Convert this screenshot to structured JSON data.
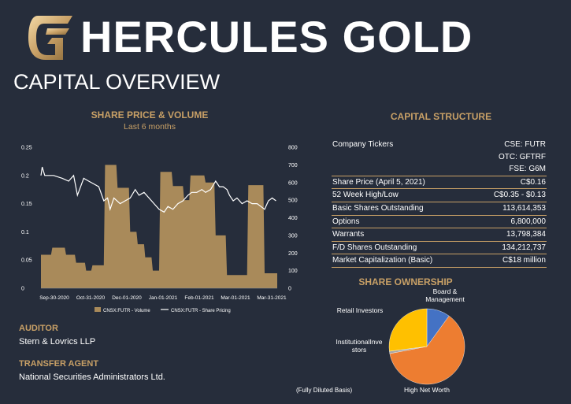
{
  "header": {
    "brand": "HERCULES GOLD",
    "subtitle": "CAPITAL OVERVIEW"
  },
  "share_chart": {
    "title": "SHARE PRICE & VOLUME",
    "subtitle": "Last 6 months"
  },
  "capital_structure": {
    "title": "CAPITAL STRUCTURE",
    "rows": [
      {
        "label": "Company Tickers",
        "value": "CSE: FUTR",
        "rule": false
      },
      {
        "label": "",
        "value": "OTC: GFTRF",
        "rule": false
      },
      {
        "label": "",
        "value": "FSE: G6M",
        "rule": true
      },
      {
        "label": "Share Price (April 5, 2021)",
        "value": "C$0.16",
        "rule": true
      },
      {
        "label": "52 Week High/Low",
        "value": "C$0.35 - $0.13",
        "rule": true
      },
      {
        "label": "Basic Shares Outstanding",
        "value": "113,614,353",
        "rule": true
      },
      {
        "label": "Options",
        "value": "6,800,000",
        "rule": true
      },
      {
        "label": "Warrants",
        "value": "13,798,384",
        "rule": true
      },
      {
        "label": "F/D Shares Outstanding",
        "value": "134,212,737",
        "rule": true
      },
      {
        "label": "Market Capitalization (Basic)",
        "value": "C$18 million",
        "rule": true
      }
    ]
  },
  "ownership": {
    "title": "SHARE OWNERSHIP",
    "basis_note": "(Fully Diluted Basis)"
  },
  "auditor": {
    "heading": "AUDITOR",
    "value": "Stern & Lovrics LLP"
  },
  "transfer_agent": {
    "heading": "TRANSFER AGENT",
    "value": "National Securities Administrators Ltd."
  },
  "colors": {
    "background": "#262d3b",
    "gold": "#c8a066",
    "volume": "#a98a5a",
    "price": "#ffffff"
  },
  "chart_data": [
    {
      "type": "bar+line",
      "title": "SHARE PRICE & VOLUME",
      "subtitle": "Last 6 months",
      "x_ticks": [
        "Sep-30-2020",
        "Oct-31-2020",
        "Dec-01-2020",
        "Jan-01-2021",
        "Feb-01-2021",
        "Mar-01-2021",
        "Mar-31-2021"
      ],
      "x_range": [
        "2020-09-30",
        "2021-04-06"
      ],
      "y_left": {
        "ticks": [
          0,
          0.05,
          0.1,
          0.15,
          0.2,
          0.25
        ],
        "lim": [
          0,
          0.25
        ],
        "series": "CNSX:FUTR - Share Pricing"
      },
      "y_right": {
        "ticks": [
          0,
          100,
          200,
          300,
          400,
          500,
          600,
          700,
          800
        ],
        "lim": [
          0,
          800
        ],
        "series": "CNSX:FUTR - Volume"
      },
      "legend": [
        "CNSX:FUTR - Volume",
        "CNSX:FUTR - Share Pricing"
      ],
      "legend_position": "bottom",
      "series": [
        {
          "name": "CNSX:FUTR - Volume",
          "type": "area-step",
          "points": [
            [
              "2020-09-30",
              190
            ],
            [
              "2020-10-08",
              190
            ],
            [
              "2020-10-09",
              230
            ],
            [
              "2020-10-19",
              230
            ],
            [
              "2020-10-20",
              190
            ],
            [
              "2020-10-27",
              190
            ],
            [
              "2020-10-28",
              145
            ],
            [
              "2020-11-04",
              145
            ],
            [
              "2020-11-05",
              100
            ],
            [
              "2020-11-09",
              100
            ],
            [
              "2020-11-10",
              130
            ],
            [
              "2020-11-19",
              130
            ],
            [
              "2020-11-20",
              700
            ],
            [
              "2020-11-29",
              700
            ],
            [
              "2020-11-30",
              570
            ],
            [
              "2020-12-09",
              570
            ],
            [
              "2020-12-10",
              320
            ],
            [
              "2020-12-15",
              320
            ],
            [
              "2020-12-16",
              250
            ],
            [
              "2020-12-21",
              250
            ],
            [
              "2020-12-22",
              175
            ],
            [
              "2020-12-27",
              175
            ],
            [
              "2020-12-28",
              100
            ],
            [
              "2021-01-02",
              100
            ],
            [
              "2021-01-03",
              660
            ],
            [
              "2021-01-12",
              660
            ],
            [
              "2021-01-13",
              580
            ],
            [
              "2021-01-21",
              580
            ],
            [
              "2021-01-22",
              500
            ],
            [
              "2021-01-26",
              500
            ],
            [
              "2021-01-27",
              640
            ],
            [
              "2021-02-07",
              640
            ],
            [
              "2021-02-08",
              600
            ],
            [
              "2021-02-15",
              600
            ],
            [
              "2021-02-16",
              300
            ],
            [
              "2021-02-24",
              300
            ],
            [
              "2021-02-25",
              75
            ],
            [
              "2021-03-13",
              75
            ],
            [
              "2021-03-14",
              585
            ],
            [
              "2021-03-26",
              585
            ],
            [
              "2021-03-27",
              85
            ],
            [
              "2021-04-06",
              85
            ]
          ]
        },
        {
          "name": "CNSX:FUTR - Share Pricing",
          "type": "line",
          "points": [
            [
              "2020-09-30",
              0.2
            ],
            [
              "2020-10-01",
              0.215
            ],
            [
              "2020-10-03",
              0.2
            ],
            [
              "2020-10-10",
              0.2
            ],
            [
              "2020-10-17",
              0.195
            ],
            [
              "2020-10-22",
              0.19
            ],
            [
              "2020-10-26",
              0.2
            ],
            [
              "2020-10-29",
              0.165
            ],
            [
              "2020-11-03",
              0.195
            ],
            [
              "2020-11-07",
              0.19
            ],
            [
              "2020-11-11",
              0.185
            ],
            [
              "2020-11-15",
              0.18
            ],
            [
              "2020-11-19",
              0.155
            ],
            [
              "2020-11-22",
              0.16
            ],
            [
              "2020-11-24",
              0.14
            ],
            [
              "2020-11-27",
              0.16
            ],
            [
              "2020-12-02",
              0.15
            ],
            [
              "2020-12-06",
              0.155
            ],
            [
              "2020-12-10",
              0.16
            ],
            [
              "2020-12-14",
              0.175
            ],
            [
              "2020-12-17",
              0.165
            ],
            [
              "2020-12-21",
              0.17
            ],
            [
              "2020-12-25",
              0.16
            ],
            [
              "2020-12-29",
              0.15
            ],
            [
              "2021-01-02",
              0.14
            ],
            [
              "2021-01-06",
              0.135
            ],
            [
              "2021-01-09",
              0.145
            ],
            [
              "2021-01-13",
              0.14
            ],
            [
              "2021-01-17",
              0.15
            ],
            [
              "2021-01-21",
              0.155
            ],
            [
              "2021-01-25",
              0.165
            ],
            [
              "2021-01-28",
              0.17
            ],
            [
              "2021-02-01",
              0.17
            ],
            [
              "2021-02-05",
              0.175
            ],
            [
              "2021-02-08",
              0.17
            ],
            [
              "2021-02-12",
              0.175
            ],
            [
              "2021-02-16",
              0.19
            ],
            [
              "2021-02-19",
              0.18
            ],
            [
              "2021-02-22",
              0.18
            ],
            [
              "2021-02-25",
              0.175
            ],
            [
              "2021-02-27",
              0.165
            ],
            [
              "2021-03-02",
              0.155
            ],
            [
              "2021-03-05",
              0.16
            ],
            [
              "2021-03-09",
              0.15
            ],
            [
              "2021-03-13",
              0.155
            ],
            [
              "2021-03-17",
              0.15
            ],
            [
              "2021-03-21",
              0.15
            ],
            [
              "2021-03-24",
              0.145
            ],
            [
              "2021-03-27",
              0.14
            ],
            [
              "2021-03-30",
              0.155
            ],
            [
              "2021-04-02",
              0.16
            ],
            [
              "2021-04-05",
              0.155
            ]
          ]
        }
      ]
    },
    {
      "type": "pie",
      "title": "SHARE OWNERSHIP",
      "note": "(Fully Diluted Basis)",
      "slices": [
        {
          "label": "Board & Management",
          "value": 10,
          "color": "#4472c4"
        },
        {
          "label": "High Net Worth",
          "value": 62,
          "color": "#ed7d31"
        },
        {
          "label": "Institutional Investors",
          "label_as_shown": "InstitutionalInve\nstors",
          "value": 1,
          "color": "#a5a5a5"
        },
        {
          "label": "Retail Investors",
          "value": 27,
          "color": "#ffc000"
        }
      ]
    }
  ]
}
